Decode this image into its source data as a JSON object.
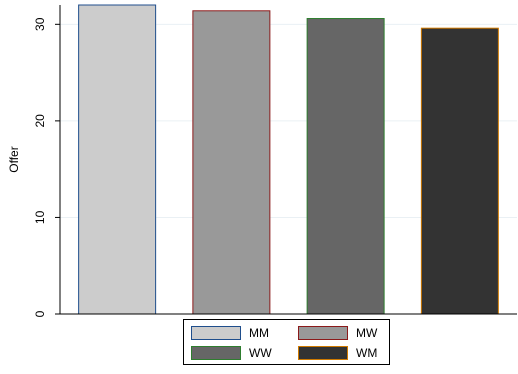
{
  "chart_data": {
    "type": "bar",
    "title": "",
    "xlabel": "",
    "ylabel": "Offer",
    "ylim": [
      0,
      32
    ],
    "yticks": [
      0,
      10,
      20,
      30
    ],
    "grid": true,
    "legend_placement": "bottom",
    "categories": [
      "MM",
      "MW",
      "WW",
      "WM"
    ],
    "values": [
      32.0,
      31.4,
      30.6,
      29.6
    ],
    "colors": {
      "fill": [
        "#cccccc",
        "#999999",
        "#666666",
        "#333333"
      ],
      "outline": [
        "#1f4e8c",
        "#8b1a1a",
        "#2e7d2e",
        "#d07a00"
      ]
    },
    "legend": [
      {
        "label": "MM",
        "fill": "#cccccc",
        "outline": "#1f4e8c"
      },
      {
        "label": "MW",
        "fill": "#999999",
        "outline": "#8b1a1a"
      },
      {
        "label": "WW",
        "fill": "#666666",
        "outline": "#2e7d2e"
      },
      {
        "label": "WM",
        "fill": "#333333",
        "outline": "#d07a00"
      }
    ]
  }
}
